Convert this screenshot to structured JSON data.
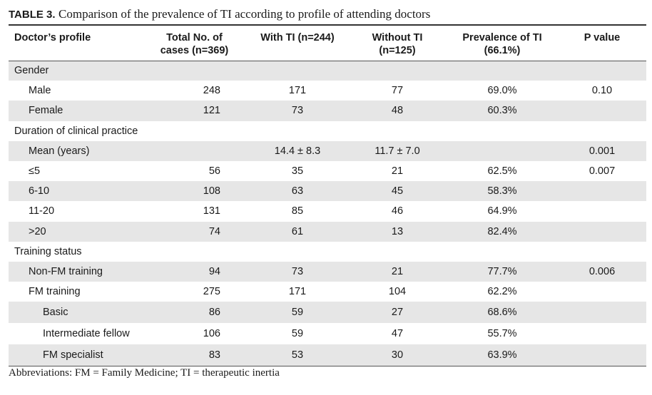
{
  "caption": {
    "label": "TABLE 3.",
    "text": "Comparison of the prevalence of TI according to profile of attending doctors"
  },
  "headers": [
    [
      "Doctor’s profile"
    ],
    [
      "Total No. of",
      "cases (n=369)"
    ],
    [
      "With TI (n=244)"
    ],
    [
      "Without TI",
      "(n=125)"
    ],
    [
      "Prevalence of TI",
      "(66.1%)"
    ],
    [
      "P value"
    ]
  ],
  "rows": [
    {
      "cells": [
        "Gender",
        "",
        "",
        "",
        "",
        ""
      ],
      "indent": 0,
      "shade": true
    },
    {
      "cells": [
        "Male",
        "248",
        "171",
        "77",
        "69.0%",
        "0.10"
      ],
      "indent": 1,
      "shade": false
    },
    {
      "cells": [
        "Female",
        "121",
        "73",
        "48",
        "60.3%",
        ""
      ],
      "indent": 1,
      "shade": true
    },
    {
      "cells": [
        "Duration of clinical practice",
        "",
        "",
        "",
        "",
        ""
      ],
      "indent": 0,
      "shade": false
    },
    {
      "cells": [
        "Mean (years)",
        "",
        "14.4 ± 8.3",
        "11.7 ± 7.0",
        "",
        "0.001"
      ],
      "indent": 1,
      "shade": true
    },
    {
      "cells": [
        "≤5",
        "56",
        "35",
        "21",
        "62.5%",
        "0.007"
      ],
      "indent": 1,
      "shade": false
    },
    {
      "cells": [
        "6-10",
        "108",
        "63",
        "45",
        "58.3%",
        ""
      ],
      "indent": 1,
      "shade": true
    },
    {
      "cells": [
        "11-20",
        "131",
        "85",
        "46",
        "64.9%",
        ""
      ],
      "indent": 1,
      "shade": false
    },
    {
      "cells": [
        ">20",
        "74",
        "61",
        "13",
        "82.4%",
        ""
      ],
      "indent": 1,
      "shade": true
    },
    {
      "cells": [
        "Training status",
        "",
        "",
        "",
        "",
        ""
      ],
      "indent": 0,
      "shade": false
    },
    {
      "cells": [
        "Non-FM training",
        "94",
        "73",
        "21",
        "77.7%",
        "0.006"
      ],
      "indent": 1,
      "shade": true
    },
    {
      "cells": [
        "FM training",
        "275",
        "171",
        "104",
        "62.2%",
        ""
      ],
      "indent": 1,
      "shade": false
    },
    {
      "cells": [
        "Basic",
        "86",
        "59",
        "27",
        "68.6%",
        ""
      ],
      "indent": 2,
      "shade": true
    },
    {
      "cells": [
        "Intermediate fellow",
        "106",
        "59",
        "47",
        "55.7%",
        ""
      ],
      "indent": 2,
      "shade": false
    },
    {
      "cells": [
        "FM specialist",
        "83",
        "53",
        "30",
        "63.9%",
        ""
      ],
      "indent": 2,
      "shade": true
    }
  ],
  "footnote": "Abbreviations: FM = Family Medicine; TI = therapeutic inertia"
}
